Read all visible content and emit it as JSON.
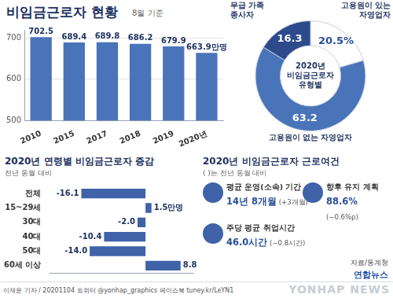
{
  "chart_data": [
    {
      "type": "bar",
      "title": "비임금근로자 현황",
      "subtitle": "8월 기준",
      "categories": [
        "2010",
        "2015",
        "2017",
        "2018",
        "2019",
        "2020년"
      ],
      "values": [
        702.5,
        689.4,
        689.8,
        686.2,
        679.9,
        663.9
      ],
      "value_labels": [
        "702.5",
        "689.4",
        "689.8",
        "686.2",
        "679.9",
        "663.9만명"
      ],
      "color": "#4a74b9",
      "ylim": [
        500,
        720
      ],
      "yticks": [
        500,
        600,
        700
      ],
      "grid": true,
      "data_labels": true
    },
    {
      "type": "doughnut",
      "title": "2020년 비임금근로자 유형별",
      "categories": [
        "고용원이 있는 자영업자",
        "고용원이 없는 자영업자",
        "무급 가족 종사자"
      ],
      "values": [
        20.5,
        63.2,
        16.3
      ],
      "value_labels": [
        "20.5%",
        "63.2",
        "16.3"
      ],
      "colors": [
        "#ffffff",
        "#4a74b9",
        "#2d4a8c"
      ],
      "data_labels": true
    },
    {
      "type": "bar",
      "orientation": "horizontal",
      "title": "2020년 연령별 비임금근로자 증감",
      "subtitle": "전년 동월 대비",
      "categories": [
        "전체",
        "15~29세",
        "30대",
        "40대",
        "50대",
        "60세 이상"
      ],
      "values": [
        -16.1,
        1.5,
        -2.0,
        -10.4,
        -14.0,
        8.8
      ],
      "value_labels": [
        "-16.1",
        "1.5만명",
        "-2.0",
        "-10.4",
        "-14.0",
        "8.8"
      ],
      "color": "#3f62a8",
      "xlim": [
        -24,
        12
      ],
      "tick_labels": "y",
      "grid": false,
      "data_labels": true
    }
  ],
  "conditions": {
    "title": "2020년 비임금근로자 근로여건",
    "subtitle": "( )는 전년 동월 대비",
    "items": [
      {
        "label": "평균 운영(소속) 기간",
        "value": "14년 8개월",
        "change": "(+3개월)"
      },
      {
        "label": "향후 유지 계획",
        "value": "88.6%",
        "change": "(−0.6%p)"
      },
      {
        "label": "주당 평균 취업시간",
        "value": "46.0시간",
        "change": "(−0.8시간)"
      }
    ],
    "source": "자료/통계청"
  },
  "footer": {
    "credit": "이재윤 기자 / 20201104  트위터 @yonhap_graphics  페이스북 tuney.kr/LeYN1",
    "logo": "연합뉴스",
    "watermark": "YONHAP NEWS"
  }
}
